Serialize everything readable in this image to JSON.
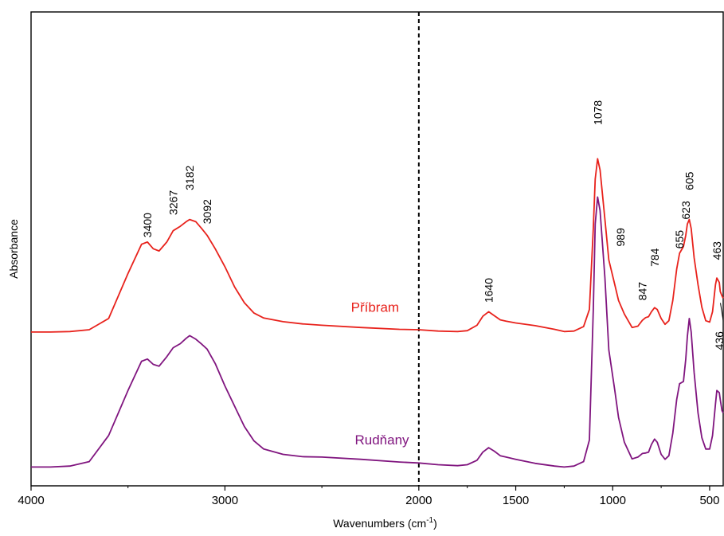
{
  "chart_data": {
    "type": "line",
    "xlabel": "Wavenumbers (cm",
    "xlabel_sup": "-1",
    "xlabel_end": ")",
    "ylabel": "Absorbance",
    "x_reversed": true,
    "xlim": [
      4000,
      430
    ],
    "ylim": [
      0,
      100
    ],
    "grid": false,
    "x_ticks": [
      4000,
      3000,
      2000,
      1500,
      1000,
      500
    ],
    "x_tick_labels": [
      "4000",
      "3000",
      "2000",
      "1500",
      "1000",
      "500"
    ],
    "reference_lines": [
      {
        "x": 2000,
        "style": "dashed",
        "color": "#000000"
      }
    ],
    "series": [
      {
        "name": "Příbram",
        "color": "#e8221c",
        "points": [
          [
            4000,
            31.0
          ],
          [
            3900,
            31.0
          ],
          [
            3800,
            31.1
          ],
          [
            3700,
            31.5
          ],
          [
            3600,
            34.0
          ],
          [
            3500,
            44.0
          ],
          [
            3430,
            50.5
          ],
          [
            3400,
            51.0
          ],
          [
            3370,
            49.5
          ],
          [
            3340,
            49.0
          ],
          [
            3300,
            51.0
          ],
          [
            3267,
            53.5
          ],
          [
            3230,
            54.5
          ],
          [
            3200,
            55.5
          ],
          [
            3182,
            56.0
          ],
          [
            3150,
            55.5
          ],
          [
            3120,
            54.0
          ],
          [
            3092,
            52.5
          ],
          [
            3050,
            49.5
          ],
          [
            3000,
            45.5
          ],
          [
            2950,
            41.0
          ],
          [
            2900,
            37.5
          ],
          [
            2850,
            35.2
          ],
          [
            2800,
            34.1
          ],
          [
            2700,
            33.3
          ],
          [
            2600,
            32.8
          ],
          [
            2500,
            32.5
          ],
          [
            2300,
            32.0
          ],
          [
            2100,
            31.6
          ],
          [
            2000,
            31.5
          ],
          [
            1900,
            31.2
          ],
          [
            1800,
            31.1
          ],
          [
            1750,
            31.3
          ],
          [
            1700,
            32.5
          ],
          [
            1670,
            34.5
          ],
          [
            1640,
            35.5
          ],
          [
            1610,
            34.6
          ],
          [
            1580,
            33.7
          ],
          [
            1550,
            33.4
          ],
          [
            1500,
            33.0
          ],
          [
            1400,
            32.4
          ],
          [
            1300,
            31.6
          ],
          [
            1250,
            31.1
          ],
          [
            1200,
            31.2
          ],
          [
            1150,
            32.2
          ],
          [
            1120,
            36.0
          ],
          [
            1100,
            54.0
          ],
          [
            1090,
            65.0
          ],
          [
            1078,
            69.5
          ],
          [
            1065,
            67.0
          ],
          [
            1040,
            56.0
          ],
          [
            1020,
            47.0
          ],
          [
            989,
            41.5
          ],
          [
            970,
            38.0
          ],
          [
            940,
            35.0
          ],
          [
            900,
            32.0
          ],
          [
            870,
            32.3
          ],
          [
            847,
            33.6
          ],
          [
            830,
            34.2
          ],
          [
            815,
            34.4
          ],
          [
            800,
            35.5
          ],
          [
            784,
            36.4
          ],
          [
            770,
            36.0
          ],
          [
            750,
            34.0
          ],
          [
            730,
            32.7
          ],
          [
            710,
            33.5
          ],
          [
            690,
            38.0
          ],
          [
            670,
            45.0
          ],
          [
            655,
            48.5
          ],
          [
            635,
            50.0
          ],
          [
            623,
            52.5
          ],
          [
            615,
            55.0
          ],
          [
            605,
            56.0
          ],
          [
            595,
            54.0
          ],
          [
            580,
            47.5
          ],
          [
            560,
            41.5
          ],
          [
            540,
            36.5
          ],
          [
            520,
            33.5
          ],
          [
            500,
            33.2
          ],
          [
            485,
            35.5
          ],
          [
            470,
            41.5
          ],
          [
            463,
            43.0
          ],
          [
            450,
            42.0
          ],
          [
            445,
            40.0
          ],
          [
            436,
            39.0
          ],
          [
            430,
            38.5
          ]
        ]
      },
      {
        "name": "Rudňany",
        "color": "#80157f",
        "points": [
          [
            4000,
            1.0
          ],
          [
            3900,
            1.0
          ],
          [
            3800,
            1.2
          ],
          [
            3700,
            2.2
          ],
          [
            3600,
            8.0
          ],
          [
            3500,
            18.0
          ],
          [
            3430,
            24.5
          ],
          [
            3400,
            25.0
          ],
          [
            3370,
            23.8
          ],
          [
            3340,
            23.4
          ],
          [
            3300,
            25.5
          ],
          [
            3267,
            27.5
          ],
          [
            3230,
            28.4
          ],
          [
            3200,
            29.6
          ],
          [
            3182,
            30.2
          ],
          [
            3150,
            29.4
          ],
          [
            3120,
            28.3
          ],
          [
            3092,
            27.2
          ],
          [
            3050,
            24.0
          ],
          [
            3000,
            19.0
          ],
          [
            2950,
            14.5
          ],
          [
            2900,
            10.0
          ],
          [
            2850,
            6.8
          ],
          [
            2800,
            5.0
          ],
          [
            2700,
            3.8
          ],
          [
            2600,
            3.3
          ],
          [
            2500,
            3.2
          ],
          [
            2300,
            2.7
          ],
          [
            2100,
            2.1
          ],
          [
            2000,
            1.9
          ],
          [
            1900,
            1.5
          ],
          [
            1800,
            1.3
          ],
          [
            1750,
            1.5
          ],
          [
            1700,
            2.5
          ],
          [
            1670,
            4.3
          ],
          [
            1640,
            5.3
          ],
          [
            1610,
            4.5
          ],
          [
            1580,
            3.5
          ],
          [
            1550,
            3.2
          ],
          [
            1500,
            2.7
          ],
          [
            1400,
            1.8
          ],
          [
            1300,
            1.2
          ],
          [
            1250,
            1.0
          ],
          [
            1200,
            1.2
          ],
          [
            1150,
            2.2
          ],
          [
            1120,
            7.0
          ],
          [
            1100,
            36.0
          ],
          [
            1090,
            55.0
          ],
          [
            1078,
            61.0
          ],
          [
            1065,
            58.0
          ],
          [
            1040,
            43.0
          ],
          [
            1020,
            27.0
          ],
          [
            989,
            18.0
          ],
          [
            970,
            12.0
          ],
          [
            940,
            6.5
          ],
          [
            900,
            2.8
          ],
          [
            870,
            3.2
          ],
          [
            847,
            4.0
          ],
          [
            830,
            4.1
          ],
          [
            815,
            4.3
          ],
          [
            800,
            6.0
          ],
          [
            784,
            7.2
          ],
          [
            770,
            6.5
          ],
          [
            750,
            3.8
          ],
          [
            730,
            2.7
          ],
          [
            710,
            3.5
          ],
          [
            690,
            8.5
          ],
          [
            670,
            16.0
          ],
          [
            655,
            19.5
          ],
          [
            635,
            20.0
          ],
          [
            623,
            25.0
          ],
          [
            615,
            30.0
          ],
          [
            605,
            34.0
          ],
          [
            595,
            31.0
          ],
          [
            580,
            22.0
          ],
          [
            560,
            13.0
          ],
          [
            540,
            7.5
          ],
          [
            520,
            5.0
          ],
          [
            500,
            5.0
          ],
          [
            485,
            8.0
          ],
          [
            470,
            15.0
          ],
          [
            463,
            18.0
          ],
          [
            450,
            17.5
          ],
          [
            445,
            16.0
          ],
          [
            436,
            13.5
          ],
          [
            430,
            13.0
          ]
        ]
      }
    ],
    "series_labels": [
      {
        "text": "Příbram",
        "x": 2350,
        "y": 35.5,
        "color": "#e8221c"
      },
      {
        "text": "Rudňany",
        "x": 2330,
        "y": 6.0,
        "color": "#80157f"
      }
    ],
    "annotations": [
      {
        "text": "3400",
        "x": 3400,
        "y": 52.0,
        "rotate": -90
      },
      {
        "text": "3267",
        "x": 3267,
        "y": 57.0,
        "rotate": -90
      },
      {
        "text": "3182",
        "x": 3182,
        "y": 62.5,
        "rotate": -90
      },
      {
        "text": "3092",
        "x": 3092,
        "y": 55.0,
        "rotate": -90
      },
      {
        "text": "1640",
        "x": 1640,
        "y": 37.5,
        "rotate": -90
      },
      {
        "text": "1078",
        "x": 1078,
        "y": 77.0,
        "rotate": -90
      },
      {
        "text": "989",
        "x": 960,
        "y": 50.0,
        "rotate": -90
      },
      {
        "text": "847",
        "x": 847,
        "y": 38.0,
        "rotate": -90
      },
      {
        "text": "784",
        "x": 784,
        "y": 45.5,
        "rotate": -90
      },
      {
        "text": "655",
        "x": 655,
        "y": 49.5,
        "rotate": -90
      },
      {
        "text": "623",
        "x": 623,
        "y": 56.0,
        "rotate": -90
      },
      {
        "text": "605",
        "x": 605,
        "y": 62.5,
        "rotate": -90
      },
      {
        "text": "463",
        "x": 463,
        "y": 47.0,
        "rotate": -90
      },
      {
        "text": "436",
        "x": 450,
        "y": 27.0,
        "rotate": -90,
        "leader_to": [
          436,
          38.5
        ]
      }
    ]
  }
}
